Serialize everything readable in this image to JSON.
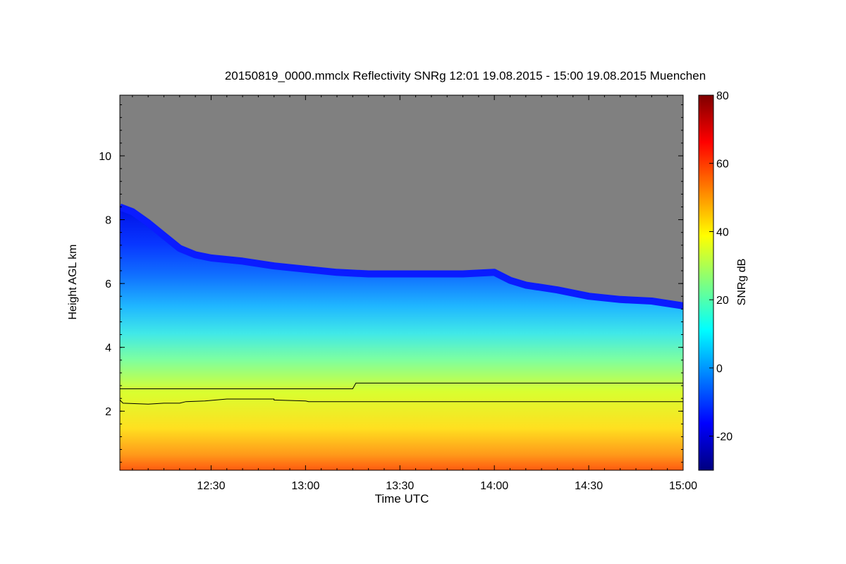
{
  "chart_data": {
    "type": "heatmap",
    "title": "20150819_0000.mmclx Reflectivity SNRg   12:01 19.08.2015 - 15:00 19.08.2015 Muenchen",
    "xlabel": "Time UTC",
    "ylabel": "Height AGL km",
    "colorbar_label": "SNRg dB",
    "x_range_minutes_utc": [
      721,
      900
    ],
    "x_ticks": [
      "12:30",
      "13:00",
      "13:30",
      "14:00",
      "14:30",
      "15:00"
    ],
    "x_tick_minutes": [
      750,
      780,
      810,
      840,
      870,
      900
    ],
    "y_range_km": [
      0.15,
      11.9
    ],
    "y_ticks": [
      2,
      4,
      6,
      8,
      10
    ],
    "colorbar_range_db": [
      -30,
      80
    ],
    "colorbar_ticks": [
      -20,
      0,
      20,
      40,
      60,
      80
    ],
    "colormap": [
      "#00007f",
      "#0000ff",
      "#007fff",
      "#00ffff",
      "#7fff7f",
      "#ffff00",
      "#ff7f00",
      "#ff0000",
      "#7f0000"
    ],
    "no_signal_color": "#808080",
    "cloud_top_km": [
      [
        721,
        8.4
      ],
      [
        725,
        8.25
      ],
      [
        730,
        7.9
      ],
      [
        735,
        7.5
      ],
      [
        740,
        7.1
      ],
      [
        745,
        6.9
      ],
      [
        750,
        6.8
      ],
      [
        760,
        6.7
      ],
      [
        770,
        6.55
      ],
      [
        780,
        6.45
      ],
      [
        790,
        6.35
      ],
      [
        800,
        6.3
      ],
      [
        810,
        6.3
      ],
      [
        820,
        6.3
      ],
      [
        830,
        6.3
      ],
      [
        840,
        6.35
      ],
      [
        845,
        6.1
      ],
      [
        850,
        5.95
      ],
      [
        860,
        5.8
      ],
      [
        870,
        5.6
      ],
      [
        880,
        5.5
      ],
      [
        890,
        5.45
      ],
      [
        900,
        5.3
      ]
    ],
    "line_upper_km": [
      [
        721,
        2.7
      ],
      [
        795,
        2.7
      ],
      [
        796,
        2.88
      ],
      [
        900,
        2.88
      ]
    ],
    "line_lower_km": [
      [
        721,
        2.35
      ],
      [
        722,
        2.25
      ],
      [
        730,
        2.22
      ],
      [
        735,
        2.25
      ],
      [
        740,
        2.25
      ],
      [
        742,
        2.3
      ],
      [
        748,
        2.32
      ],
      [
        755,
        2.38
      ],
      [
        770,
        2.38
      ],
      [
        770,
        2.35
      ],
      [
        780,
        2.32
      ],
      [
        781,
        2.3
      ],
      [
        900,
        2.3
      ]
    ]
  }
}
